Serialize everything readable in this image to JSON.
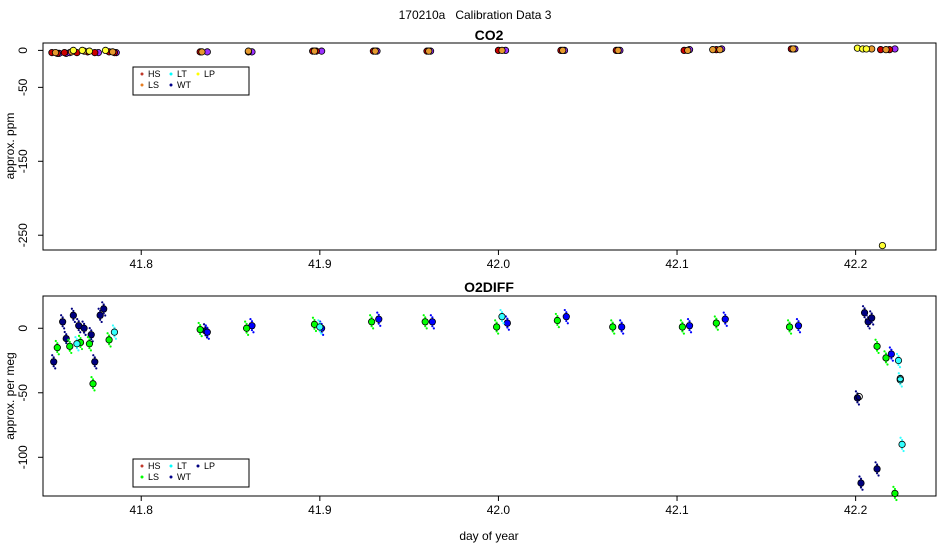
{
  "figure": {
    "title": "170210a   Calibration Data 3",
    "xlabel": "day of year"
  },
  "legend": {
    "entries": [
      "HS",
      "LS",
      "LT",
      "WT",
      "LP"
    ]
  },
  "colors": {
    "HS": "#c0392b",
    "LS": "#e67e22",
    "LT": "#00ffff",
    "WT": "#00008b",
    "LP": "#ffff00",
    "O2_green": "#00ff00",
    "O2_navy": "#000080",
    "O2_blue": "#0000ff",
    "O2_cyan": "#33ffff",
    "CO2_purple": "#9b30ff",
    "CO2_red": "#cc0000",
    "CO2_orange": "#e69a2e",
    "CO2_yellow": "#ffff33"
  },
  "chart_data": [
    {
      "type": "scatter",
      "title": "CO2",
      "xlabel": "",
      "ylabel": "approx. ppm",
      "xlim": [
        41.745,
        42.245
      ],
      "ylim": [
        -270,
        10
      ],
      "xticks": [
        "41.8",
        "41.9",
        "42.0",
        "42.1",
        "42.2"
      ],
      "yticks": [
        "0",
        "-50",
        "-150",
        "-250"
      ],
      "ytick_values": [
        0,
        -50,
        -150,
        -250
      ],
      "series": [
        {
          "name": "CO2 purple",
          "color": "CO2_purple",
          "points": [
            [
              41.754,
              -4
            ],
            [
              41.758,
              -4
            ],
            [
              41.76,
              -3
            ],
            [
              41.776,
              -3
            ],
            [
              41.786,
              -3
            ],
            [
              41.837,
              -2
            ],
            [
              41.862,
              -2
            ],
            [
              41.901,
              -1
            ],
            [
              41.932,
              -1
            ],
            [
              41.962,
              -1
            ],
            [
              42.004,
              0
            ],
            [
              42.037,
              0
            ],
            [
              42.068,
              0
            ],
            [
              42.107,
              1
            ],
            [
              42.125,
              2
            ],
            [
              42.166,
              2
            ],
            [
              42.222,
              2
            ]
          ]
        },
        {
          "name": "CO2 red",
          "color": "CO2_red",
          "points": [
            [
              41.75,
              -3
            ],
            [
              41.753,
              -4
            ],
            [
              41.757,
              -3
            ],
            [
              41.764,
              -3
            ],
            [
              41.77,
              -2
            ],
            [
              41.774,
              -3
            ],
            [
              41.782,
              -2
            ],
            [
              41.785,
              -3
            ],
            [
              41.833,
              -2
            ],
            [
              41.86,
              -2
            ],
            [
              41.896,
              -1
            ],
            [
              41.898,
              -1
            ],
            [
              41.93,
              -1
            ],
            [
              41.96,
              -1
            ],
            [
              42.0,
              0
            ],
            [
              42.035,
              0
            ],
            [
              42.066,
              0
            ],
            [
              42.104,
              0
            ],
            [
              42.122,
              1
            ],
            [
              42.164,
              2
            ],
            [
              42.214,
              1
            ],
            [
              42.219,
              1
            ]
          ]
        },
        {
          "name": "CO2 orange",
          "color": "CO2_orange",
          "points": [
            [
              41.752,
              -3
            ],
            [
              41.761,
              -2
            ],
            [
              41.768,
              -1
            ],
            [
              41.784,
              -2
            ],
            [
              41.834,
              -2
            ],
            [
              41.86,
              -1
            ],
            [
              41.897,
              -1
            ],
            [
              41.931,
              -1
            ],
            [
              41.961,
              -1
            ],
            [
              42.002,
              0
            ],
            [
              42.036,
              0
            ],
            [
              42.067,
              0
            ],
            [
              42.106,
              0
            ],
            [
              42.12,
              1
            ],
            [
              42.124,
              1
            ],
            [
              42.165,
              2
            ],
            [
              42.209,
              2
            ],
            [
              42.217,
              1
            ]
          ]
        },
        {
          "name": "CO2 yellow",
          "color": "CO2_yellow",
          "points": [
            [
              41.762,
              0
            ],
            [
              41.767,
              0
            ],
            [
              41.771,
              -1
            ],
            [
              41.78,
              0
            ],
            [
              42.201,
              3
            ],
            [
              42.204,
              2
            ],
            [
              42.206,
              2
            ],
            [
              42.215,
              -264
            ]
          ]
        }
      ]
    },
    {
      "type": "scatter",
      "title": "O2DIFF",
      "xlabel": "day of year",
      "ylabel": "approx. per meg",
      "xlim": [
        41.745,
        42.245
      ],
      "ylim": [
        -130,
        25
      ],
      "xticks": [
        "41.8",
        "41.9",
        "42.0",
        "42.1",
        "42.2"
      ],
      "yticks": [
        "0",
        "-50",
        "-100"
      ],
      "ytick_values": [
        0,
        -50,
        -100
      ],
      "series": [
        {
          "name": "O2 navy",
          "color": "O2_navy",
          "points": [
            [
              41.751,
              -26
            ],
            [
              41.756,
              5
            ],
            [
              41.758,
              -8
            ],
            [
              41.762,
              10
            ],
            [
              41.765,
              2
            ],
            [
              41.768,
              0
            ],
            [
              41.772,
              -5
            ],
            [
              41.774,
              -26
            ],
            [
              41.777,
              10
            ],
            [
              41.779,
              15
            ],
            [
              41.836,
              -2
            ],
            [
              42.201,
              -54
            ],
            [
              42.203,
              -120
            ],
            [
              42.205,
              12
            ],
            [
              42.207,
              5
            ],
            [
              42.209,
              8
            ],
            [
              42.212,
              -109
            ]
          ]
        },
        {
          "name": "O2 blue",
          "color": "O2_blue",
          "points": [
            [
              41.837,
              -3
            ],
            [
              41.862,
              2
            ],
            [
              41.901,
              0
            ],
            [
              41.933,
              7
            ],
            [
              41.963,
              5
            ],
            [
              42.005,
              4
            ],
            [
              42.038,
              9
            ],
            [
              42.069,
              1
            ],
            [
              42.107,
              2
            ],
            [
              42.127,
              7
            ],
            [
              42.168,
              2
            ],
            [
              42.22,
              -20
            ]
          ]
        },
        {
          "name": "O2 green",
          "color": "O2_green",
          "points": [
            [
              41.753,
              -15
            ],
            [
              41.76,
              -14
            ],
            [
              41.766,
              -11
            ],
            [
              41.771,
              -12
            ],
            [
              41.773,
              -43
            ],
            [
              41.782,
              -9
            ],
            [
              41.833,
              -1
            ],
            [
              41.859,
              0
            ],
            [
              41.897,
              3
            ],
            [
              41.929,
              5
            ],
            [
              41.959,
              5
            ],
            [
              41.999,
              1
            ],
            [
              42.033,
              6
            ],
            [
              42.064,
              1
            ],
            [
              42.103,
              1
            ],
            [
              42.122,
              4
            ],
            [
              42.163,
              1
            ],
            [
              42.212,
              -14
            ],
            [
              42.217,
              -23
            ],
            [
              42.222,
              -128
            ]
          ]
        },
        {
          "name": "O2 cyan",
          "color": "O2_cyan",
          "points": [
            [
              41.764,
              -12
            ],
            [
              41.785,
              -3
            ],
            [
              41.9,
              1
            ],
            [
              42.002,
              9
            ],
            [
              42.224,
              -25
            ],
            [
              42.225,
              -40
            ],
            [
              42.226,
              -90
            ]
          ]
        },
        {
          "name": "O2 open circles",
          "color": "O2_navy",
          "points": [
            [
              42.202,
              -53
            ],
            [
              42.225,
              -39
            ]
          ]
        }
      ]
    }
  ]
}
